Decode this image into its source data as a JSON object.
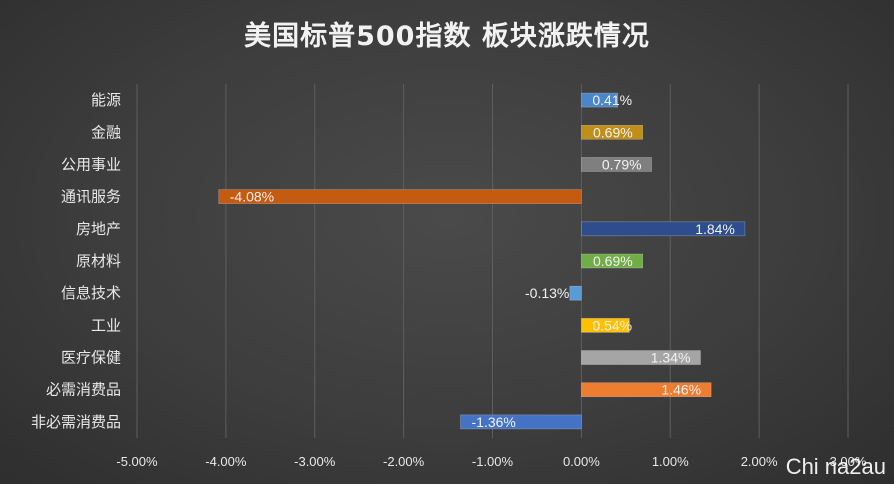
{
  "chart_data": {
    "type": "bar",
    "orientation": "horizontal",
    "title": "美国标普500指数 板块涨跌情况",
    "categories": [
      "能源",
      "金融",
      "公用事业",
      "通讯服务",
      "房地产",
      "原材料",
      "信息技术",
      "工业",
      "医疗保健",
      "必需消费品",
      "非必需消费品"
    ],
    "values": [
      0.41,
      0.69,
      0.79,
      -4.08,
      1.84,
      0.69,
      -0.13,
      0.54,
      1.34,
      1.46,
      -1.36
    ],
    "data_labels": [
      "0.41%",
      "0.69%",
      "0.79%",
      "-4.08%",
      "1.84%",
      "0.69%",
      "-0.13%",
      "0.54%",
      "1.34%",
      "1.46%",
      "-1.36%"
    ],
    "colors": [
      "#4a86c8",
      "#c08f1a",
      "#7f7f7f",
      "#c55a11",
      "#2e4d8c",
      "#70ad47",
      "#5b9bd5",
      "#ffc000",
      "#a5a5a5",
      "#ed7d31",
      "#4472c4"
    ],
    "xlim": [
      -5,
      3
    ],
    "x_ticks": [
      -5,
      -4,
      -3,
      -2,
      -1,
      0,
      1,
      2,
      3
    ],
    "x_tick_labels": [
      "-5.00%",
      "-4.00%",
      "-3.00%",
      "-2.00%",
      "-1.00%",
      "0.00%",
      "1.00%",
      "2.00%",
      "3.00%"
    ],
    "xlabel": "",
    "ylabel": "",
    "grid": true,
    "legend": "none"
  },
  "watermark": "Chi na2au"
}
